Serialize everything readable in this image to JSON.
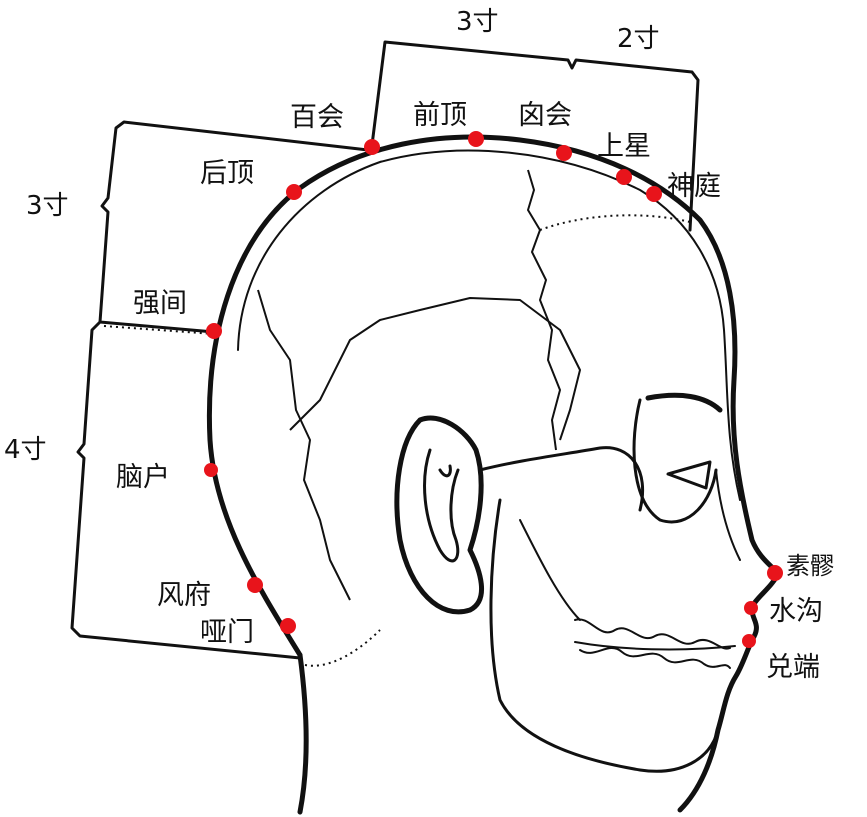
{
  "acupoints": [
    {
      "id": "baihui",
      "label": "百会",
      "color": "#e8141b"
    },
    {
      "id": "qianding",
      "label": "前顶",
      "color": "#e8141b"
    },
    {
      "id": "xinhui",
      "label": "囟会",
      "color": "#e8141b"
    },
    {
      "id": "shangxing",
      "label": "上星",
      "color": "#e8141b"
    },
    {
      "id": "shenting",
      "label": "神庭",
      "color": "#e8141b"
    },
    {
      "id": "houding",
      "label": "后顶",
      "color": "#e8141b"
    },
    {
      "id": "qiangjian",
      "label": "强间",
      "color": "#e8141b"
    },
    {
      "id": "naohu",
      "label": "脑户",
      "color": "#e8141b"
    },
    {
      "id": "fengfu",
      "label": "风府",
      "color": "#e8141b"
    },
    {
      "id": "yamen",
      "label": "哑门",
      "color": "#e8141b"
    },
    {
      "id": "suliao",
      "label": "素髎",
      "color": "#e8141b"
    },
    {
      "id": "shuigou",
      "label": "水沟",
      "color": "#e8141b"
    },
    {
      "id": "duiduan",
      "label": "兑端",
      "color": "#e8141b"
    }
  ],
  "measurements": {
    "top_left": "3寸",
    "top_right": "2寸",
    "back_upper": "3寸",
    "back_lower": "4寸"
  }
}
